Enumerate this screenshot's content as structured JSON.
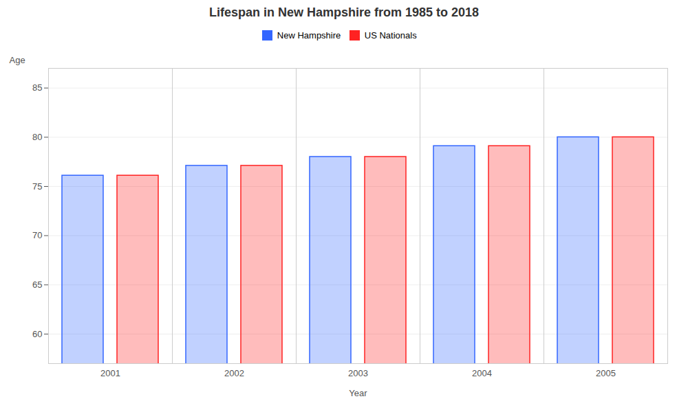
{
  "chart_data": {
    "type": "bar",
    "title": "Lifespan in New Hampshire from 1985 to 2018",
    "xlabel": "Year",
    "ylabel": "Age",
    "categories": [
      "2001",
      "2002",
      "2003",
      "2004",
      "2005"
    ],
    "series": [
      {
        "name": "New Hampshire",
        "color": "#3366ff",
        "values": [
          76.1,
          77.1,
          78.0,
          79.1,
          80.0
        ]
      },
      {
        "name": "US Nationals",
        "color": "#ff2222",
        "values": [
          76.1,
          77.1,
          78.0,
          79.1,
          80.0
        ]
      }
    ],
    "ylim": [
      57,
      87
    ],
    "yticks": [
      60,
      65,
      70,
      75,
      80,
      85
    ],
    "grid": true,
    "legend": "top"
  }
}
